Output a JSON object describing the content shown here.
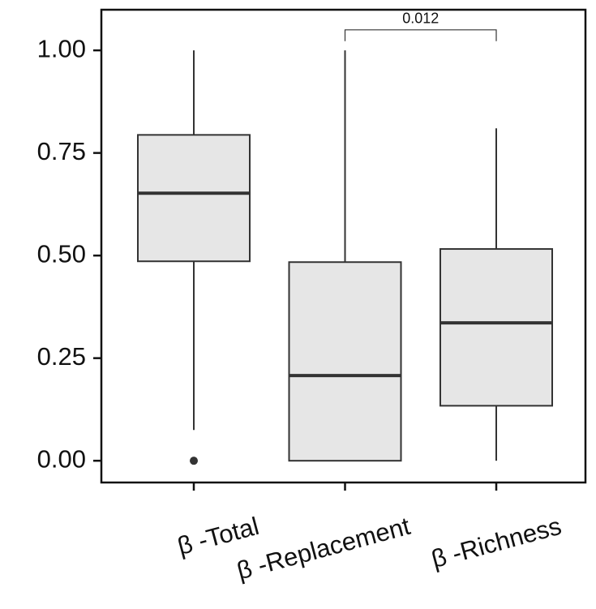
{
  "chart_data": {
    "type": "box",
    "categories": [
      "β -Total",
      "β -Replacement",
      "β -Richness"
    ],
    "boxes": [
      {
        "low": 0.075,
        "q1": 0.486,
        "median": 0.652,
        "q3": 0.794,
        "high": 1.0,
        "outliers": [
          0.0
        ]
      },
      {
        "low": 0.0,
        "q1": 0.0,
        "median": 0.2075,
        "q3": 0.484,
        "high": 1.0,
        "outliers": []
      },
      {
        "low": 0.0,
        "q1": 0.134,
        "median": 0.336,
        "q3": 0.516,
        "high": 0.81,
        "outliers": []
      }
    ],
    "color": "#e6e6e6",
    "ylim": [
      -0.053,
      1.099
    ],
    "yticks": [
      {
        "value": 0,
        "label": "0.00"
      },
      {
        "value": 0.25,
        "label": "0.25"
      },
      {
        "value": 0.5,
        "label": "0.50"
      },
      {
        "value": 0.75,
        "label": "0.75"
      },
      {
        "value": 1,
        "label": "1.00"
      }
    ],
    "annotation": {
      "text": "0.012",
      "y": 1.05,
      "between": [
        "β -Replacement",
        "β -Richness"
      ]
    }
  }
}
